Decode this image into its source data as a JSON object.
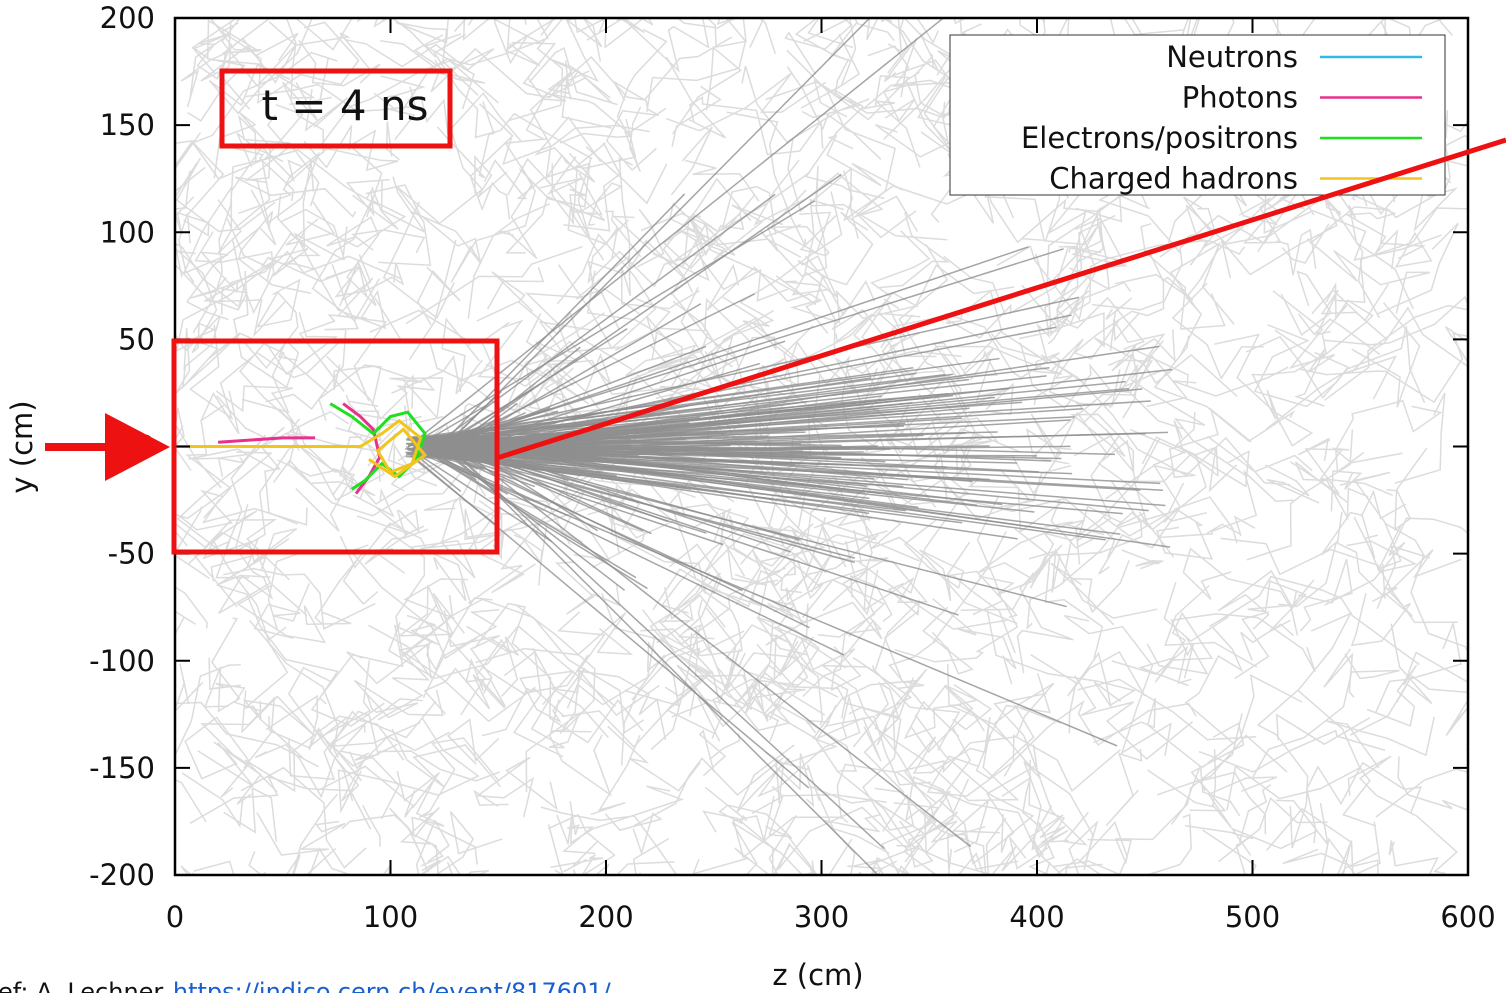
{
  "chart_data": {
    "type": "trajectory",
    "annotation": "t = 4 ns",
    "xlabel": "z (cm)",
    "ylabel": "y (cm)",
    "xlim": [
      0,
      600
    ],
    "ylim": [
      -200,
      200
    ],
    "xticks": [
      0,
      100,
      200,
      300,
      400,
      500,
      600
    ],
    "yticks": [
      -200,
      -150,
      -100,
      -50,
      0,
      50,
      100,
      150,
      200
    ],
    "legend": "upper right",
    "series": [
      {
        "name": "Neutrons",
        "color": "#33b8ea",
        "x": [],
        "y": []
      },
      {
        "name": "Photons",
        "color": "#e8308c",
        "x": [
          20,
          50,
          65,
          null,
          78,
          86,
          92,
          95,
          90,
          84
        ],
        "y": [
          2,
          4,
          4,
          null,
          20,
          14,
          8,
          -5,
          -14,
          -22
        ]
      },
      {
        "name": "Electrons/positrons",
        "color": "#1fe01f",
        "x": [
          72,
          82,
          92,
          100,
          108,
          116,
          112,
          104,
          96,
          88,
          82
        ],
        "y": [
          20,
          14,
          6,
          14,
          16,
          6,
          -6,
          -14,
          -8,
          -16,
          -20
        ]
      },
      {
        "name": "Charged hadrons",
        "color": "#f2c51c",
        "x": [
          0,
          86,
          96,
          104,
          114,
          110,
          100,
          94,
          106,
          116,
          102,
          90
        ],
        "y": [
          0,
          0,
          6,
          12,
          4,
          -8,
          -12,
          -2,
          8,
          -4,
          -14,
          -6
        ]
      }
    ],
    "source": {
      "prefix": "ef: A. Lechner",
      "url": "https://indico.cern.ch/event/817601/"
    }
  }
}
